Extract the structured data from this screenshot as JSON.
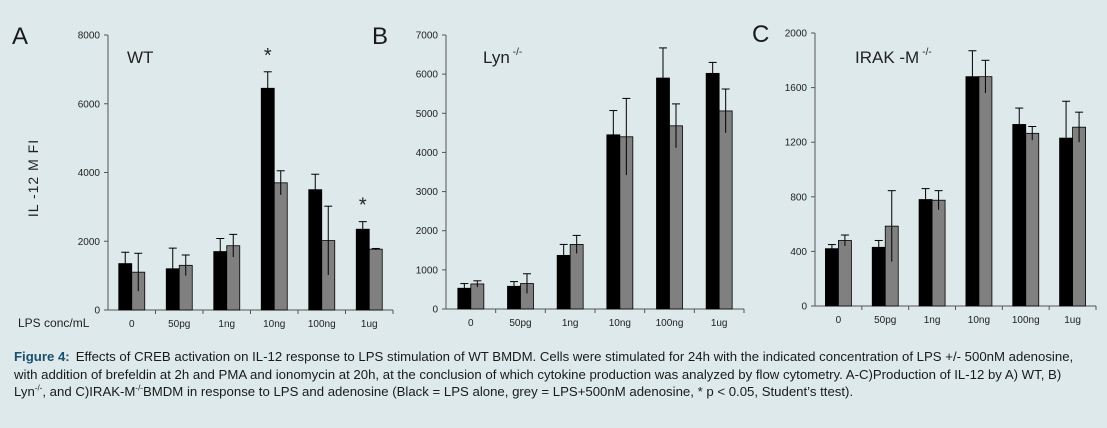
{
  "colors": {
    "background": "#dde9ea",
    "lps_alone": "#000000",
    "lps_adenosine": "#808080",
    "caption_label": "#1a4f6e"
  },
  "x_axis_label": "LPS  conc/mL",
  "y_axis_label": "IL -12 M FI",
  "chart_data": [
    {
      "type": "bar",
      "panel": "A",
      "condition": "WT",
      "condition_superscript": "",
      "ylabel": "IL -12 M FI",
      "xlabel": "LPS  conc/mL",
      "ylim": [
        0,
        8000
      ],
      "yticks": [
        0,
        2000,
        4000,
        6000,
        8000
      ],
      "grid": false,
      "legend": "none",
      "categories": [
        "0",
        "50pg",
        "1ng",
        "10ng",
        "100ng",
        "1ug"
      ],
      "series": [
        {
          "color": "#000000",
          "values": [
            1350,
            1200,
            1700,
            6450,
            3500,
            2350
          ],
          "errors": [
            330,
            600,
            380,
            480,
            450,
            220
          ]
        },
        {
          "color": "#808080",
          "values": [
            1100,
            1300,
            1870,
            3700,
            2020,
            1770
          ],
          "errors": [
            550,
            300,
            330,
            350,
            1000,
            20
          ]
        }
      ],
      "significance": [
        "",
        "",
        "",
        "*",
        "",
        "*"
      ]
    },
    {
      "type": "bar",
      "panel": "B",
      "condition": "Lyn",
      "condition_superscript": "-/-",
      "ylim": [
        0,
        7000
      ],
      "yticks": [
        0,
        1000,
        2000,
        3000,
        4000,
        5000,
        6000,
        7000
      ],
      "grid": false,
      "legend": "none",
      "categories": [
        "0",
        "50pg",
        "1ng",
        "10ng",
        "100ng",
        "1ug"
      ],
      "series": [
        {
          "color": "#000000",
          "values": [
            530,
            580,
            1370,
            4450,
            5900,
            6020
          ],
          "errors": [
            120,
            120,
            280,
            620,
            770,
            280
          ]
        },
        {
          "color": "#808080",
          "values": [
            640,
            650,
            1650,
            4400,
            4680,
            5060
          ],
          "errors": [
            80,
            250,
            230,
            980,
            560,
            560
          ]
        }
      ],
      "significance": [
        "",
        "",
        "",
        "",
        "",
        ""
      ]
    },
    {
      "type": "bar",
      "panel": "C",
      "condition": "IRAK  -M",
      "condition_superscript": "-/-",
      "ylim": [
        0,
        2000
      ],
      "yticks": [
        0,
        400,
        800,
        1200,
        1600,
        2000
      ],
      "grid": false,
      "legend": "none",
      "categories": [
        "0",
        "50pg",
        "1ng",
        "10ng",
        "100ng",
        "1ug"
      ],
      "series": [
        {
          "color": "#000000",
          "values": [
            420,
            430,
            780,
            1680,
            1330,
            1230
          ],
          "errors": [
            30,
            50,
            80,
            190,
            120,
            270
          ]
        },
        {
          "color": "#808080",
          "values": [
            480,
            585,
            775,
            1680,
            1265,
            1310
          ],
          "errors": [
            40,
            260,
            70,
            120,
            50,
            110
          ]
        }
      ],
      "significance": [
        "",
        "",
        "",
        "",
        "",
        ""
      ]
    }
  ],
  "caption": {
    "label": "Figure 4:",
    "text_1": "Effects of CREB activation on IL-12 response to LPS stimulation of WT BMDM. Cells were stimulated for 24h with the indicated concentration of LPS +/- 500nM adenosine, with addition of brefeldin at 2h and PMA and ionomycin at 20h, at the conclusion of which cytokine production was analyzed by flow cytometry. A-C)Production of IL-12 by A) WT, B) Lyn",
    "sup_1": "-/-",
    "text_2": ", and C)IRAK-M",
    "sup_2": "-/-",
    "text_3": "BMDM in response to LPS and adenosine (Black = LPS alone, grey = LPS+500nM adenosine, * p < 0.05, Student’s ttest)."
  }
}
